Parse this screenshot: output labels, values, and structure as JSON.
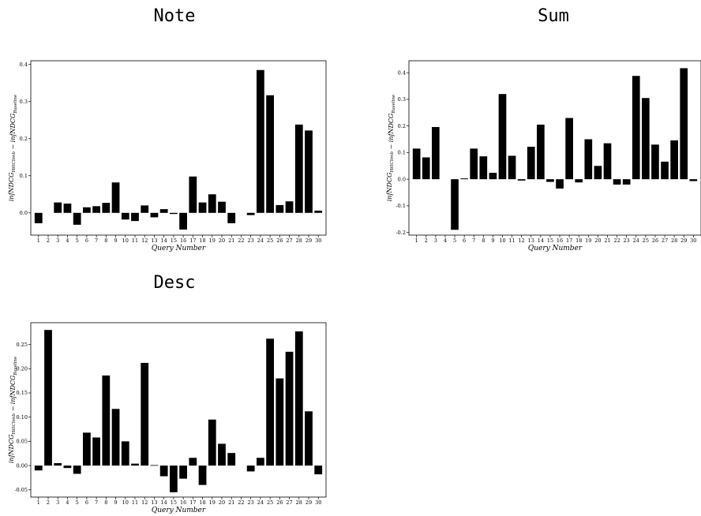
{
  "chart_data": [
    {
      "type": "bar",
      "title": "Note",
      "xlabel": "Query Number",
      "ylabel": "infNDCG_HillClimb − infNDCG_Baseline",
      "ylim": [
        -0.06,
        0.41
      ],
      "yticks": [
        0,
        0.1,
        0.2,
        0.3,
        0.4
      ],
      "ytick_labels": [
        "0.0",
        "0.1",
        "0.2",
        "0.3",
        "0.4"
      ],
      "categories": [
        "1",
        "2",
        "3",
        "4",
        "5",
        "6",
        "7",
        "8",
        "9",
        "10",
        "11",
        "12",
        "13",
        "14",
        "15",
        "16",
        "17",
        "18",
        "19",
        "20",
        "21",
        "22",
        "23",
        "24",
        "25",
        "26",
        "27",
        "28",
        "29",
        "30"
      ],
      "values": [
        -0.028,
        0.0,
        0.028,
        0.025,
        -0.032,
        0.015,
        0.018,
        0.027,
        0.082,
        -0.018,
        -0.022,
        0.02,
        -0.012,
        0.01,
        -0.003,
        -0.045,
        0.098,
        0.028,
        0.05,
        0.03,
        -0.028,
        0.0,
        -0.006,
        0.385,
        0.317,
        0.021,
        0.031,
        0.238,
        0.222,
        0.006
      ],
      "grid": false,
      "legend": "none"
    },
    {
      "type": "bar",
      "title": "Sum",
      "xlabel": "Query Number",
      "ylabel": "infNDCG_HillClimb − infNDCG_Baseline",
      "ylim": [
        -0.21,
        0.445
      ],
      "yticks": [
        -0.2,
        -0.1,
        0,
        0.1,
        0.2,
        0.3,
        0.4
      ],
      "ytick_labels": [
        "-0.2",
        "-0.1",
        "0.0",
        "0.1",
        "0.2",
        "0.3",
        "0.4"
      ],
      "categories": [
        "1",
        "2",
        "3",
        "4",
        "5",
        "6",
        "7",
        "8",
        "9",
        "10",
        "11",
        "12",
        "13",
        "14",
        "15",
        "16",
        "17",
        "18",
        "19",
        "20",
        "21",
        "22",
        "23",
        "24",
        "25",
        "26",
        "27",
        "28",
        "29",
        "30"
      ],
      "values": [
        0.115,
        0.082,
        0.196,
        0.0,
        -0.19,
        0.003,
        0.115,
        0.086,
        0.024,
        0.32,
        0.088,
        -0.005,
        0.122,
        0.205,
        -0.01,
        -0.035,
        0.23,
        -0.012,
        0.15,
        0.05,
        0.135,
        -0.02,
        -0.02,
        0.388,
        0.305,
        0.13,
        0.066,
        0.146,
        0.417,
        -0.007
      ],
      "grid": false,
      "legend": "none"
    },
    {
      "type": "bar",
      "title": "Desc",
      "xlabel": "Query Number",
      "ylabel": "infNDCG_HillClimb − infNDCG_Baseline",
      "ylim": [
        -0.065,
        0.295
      ],
      "yticks": [
        -0.05,
        0,
        0.05,
        0.1,
        0.15,
        0.2,
        0.25
      ],
      "ytick_labels": [
        "-0.05",
        "0.00",
        "0.05",
        "0.10",
        "0.15",
        "0.20",
        "0.25"
      ],
      "categories": [
        "1",
        "2",
        "3",
        "4",
        "5",
        "6",
        "7",
        "8",
        "9",
        "10",
        "11",
        "12",
        "13",
        "14",
        "15",
        "16",
        "17",
        "18",
        "19",
        "20",
        "21",
        "22",
        "23",
        "24",
        "25",
        "26",
        "27",
        "28",
        "29",
        "30"
      ],
      "values": [
        -0.01,
        0.28,
        0.005,
        -0.005,
        -0.017,
        0.068,
        0.058,
        0.186,
        0.117,
        0.05,
        0.004,
        0.212,
        0.001,
        -0.022,
        -0.055,
        -0.027,
        0.016,
        -0.04,
        0.095,
        0.045,
        0.026,
        0.0,
        -0.012,
        0.016,
        0.262,
        0.18,
        0.235,
        0.277,
        0.112,
        -0.018
      ],
      "grid": false,
      "legend": "none"
    }
  ],
  "colors": {
    "bar": "#000000",
    "axis": "#000000",
    "background": "#ffffff"
  }
}
